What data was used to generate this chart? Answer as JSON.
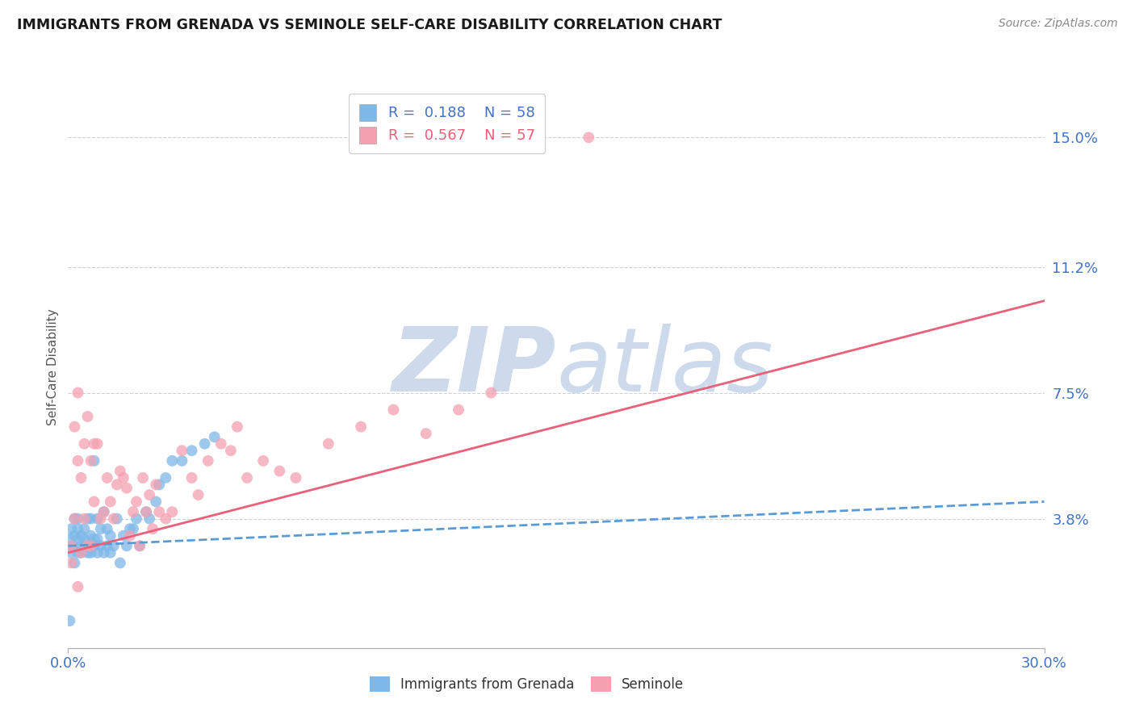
{
  "title": "IMMIGRANTS FROM GRENADA VS SEMINOLE SELF-CARE DISABILITY CORRELATION CHART",
  "source_text": "Source: ZipAtlas.com",
  "ylabel": "Self-Care Disability",
  "xlim": [
    0.0,
    0.3
  ],
  "ylim": [
    0.0,
    0.165
  ],
  "xtick_labels": [
    "0.0%",
    "30.0%"
  ],
  "ytick_vals": [
    0.038,
    0.075,
    0.112,
    0.15
  ],
  "ytick_labels": [
    "3.8%",
    "7.5%",
    "11.2%",
    "15.0%"
  ],
  "grid_color": "#d0d0d0",
  "background_color": "#ffffff",
  "tick_color": "#4472c4",
  "series": [
    {
      "name": "Immigrants from Grenada",
      "R": 0.188,
      "N": 58,
      "marker_color": "#7eb8e8",
      "line_color": "#5b9bd5",
      "line_style": "--",
      "x": [
        0.0005,
        0.001,
        0.001,
        0.0015,
        0.002,
        0.002,
        0.002,
        0.003,
        0.003,
        0.003,
        0.003,
        0.004,
        0.004,
        0.004,
        0.005,
        0.005,
        0.005,
        0.006,
        0.006,
        0.006,
        0.007,
        0.007,
        0.007,
        0.007,
        0.008,
        0.008,
        0.008,
        0.009,
        0.009,
        0.009,
        0.01,
        0.01,
        0.011,
        0.011,
        0.012,
        0.012,
        0.013,
        0.013,
        0.014,
        0.015,
        0.016,
        0.017,
        0.018,
        0.019,
        0.02,
        0.021,
        0.022,
        0.024,
        0.025,
        0.027,
        0.028,
        0.03,
        0.032,
        0.035,
        0.038,
        0.042,
        0.045,
        0.0005
      ],
      "y": [
        0.032,
        0.035,
        0.028,
        0.03,
        0.033,
        0.038,
        0.025,
        0.032,
        0.028,
        0.035,
        0.038,
        0.03,
        0.033,
        0.028,
        0.035,
        0.03,
        0.032,
        0.028,
        0.038,
        0.03,
        0.033,
        0.03,
        0.028,
        0.038,
        0.032,
        0.055,
        0.03,
        0.028,
        0.038,
        0.032,
        0.03,
        0.035,
        0.028,
        0.04,
        0.03,
        0.035,
        0.033,
        0.028,
        0.03,
        0.038,
        0.025,
        0.033,
        0.03,
        0.035,
        0.035,
        0.038,
        0.03,
        0.04,
        0.038,
        0.043,
        0.048,
        0.05,
        0.055,
        0.055,
        0.058,
        0.06,
        0.062,
        0.008
      ],
      "trend_x": [
        0.0,
        0.3
      ],
      "trend_y": [
        0.03,
        0.043
      ]
    },
    {
      "name": "Seminole",
      "R": 0.567,
      "N": 57,
      "marker_color": "#f4a0b0",
      "line_color": "#e8607a",
      "line_style": "-",
      "x": [
        0.001,
        0.001,
        0.002,
        0.002,
        0.003,
        0.003,
        0.004,
        0.004,
        0.005,
        0.005,
        0.006,
        0.006,
        0.007,
        0.007,
        0.008,
        0.008,
        0.009,
        0.01,
        0.011,
        0.012,
        0.013,
        0.014,
        0.015,
        0.016,
        0.017,
        0.018,
        0.019,
        0.02,
        0.021,
        0.022,
        0.023,
        0.024,
        0.025,
        0.026,
        0.027,
        0.028,
        0.03,
        0.032,
        0.035,
        0.038,
        0.04,
        0.043,
        0.047,
        0.05,
        0.055,
        0.06,
        0.065,
        0.07,
        0.08,
        0.09,
        0.1,
        0.11,
        0.12,
        0.13,
        0.003,
        0.052,
        0.16
      ],
      "y": [
        0.03,
        0.025,
        0.038,
        0.065,
        0.055,
        0.075,
        0.05,
        0.028,
        0.06,
        0.038,
        0.068,
        0.03,
        0.055,
        0.03,
        0.06,
        0.043,
        0.06,
        0.038,
        0.04,
        0.05,
        0.043,
        0.038,
        0.048,
        0.052,
        0.05,
        0.047,
        0.033,
        0.04,
        0.043,
        0.03,
        0.05,
        0.04,
        0.045,
        0.035,
        0.048,
        0.04,
        0.038,
        0.04,
        0.058,
        0.05,
        0.045,
        0.055,
        0.06,
        0.058,
        0.05,
        0.055,
        0.052,
        0.05,
        0.06,
        0.065,
        0.07,
        0.063,
        0.07,
        0.075,
        0.018,
        0.065,
        0.15
      ],
      "trend_x": [
        0.0,
        0.3
      ],
      "trend_y": [
        0.028,
        0.102
      ]
    }
  ],
  "watermark_zip": "ZIP",
  "watermark_atlas": "atlas",
  "watermark_color": "#ccdaec",
  "watermark_fontsize": 80,
  "legend_color_blue": "#4472c4",
  "legend_color_pink": "#e8607a"
}
